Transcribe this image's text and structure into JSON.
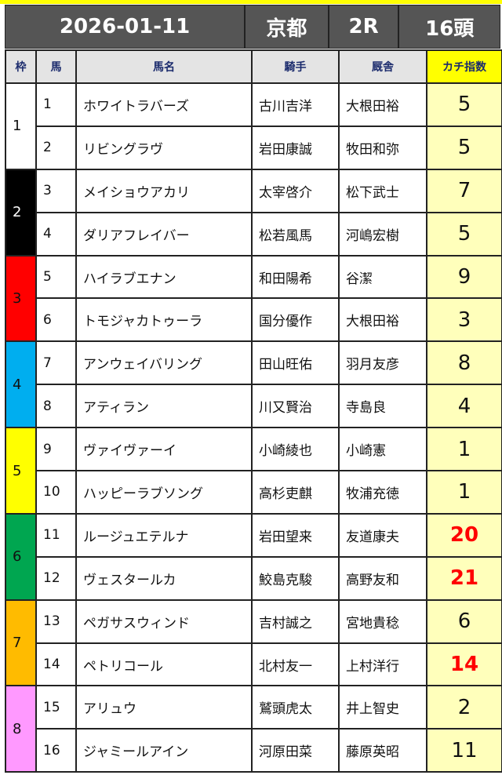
{
  "header": {
    "date": "2026-01-11",
    "venue": "京都",
    "race": "2R",
    "runners": "16頭"
  },
  "columns": {
    "waku": "枠",
    "uma": "馬",
    "name": "馬名",
    "jockey": "騎手",
    "trainer": "厩舎",
    "index": "カチ指数"
  },
  "colors": {
    "waku": [
      "#ffffff",
      "#000000",
      "#ff0000",
      "#00aeef",
      "#ffff00",
      "#00a650",
      "#ffbb00",
      "#ff99ff"
    ],
    "waku_text": [
      "#111111",
      "#ffffff",
      "#111111",
      "#111111",
      "#111111",
      "#111111",
      "#111111",
      "#111111"
    ],
    "highlight": "#ff0000",
    "index_bg": "#ffffbb",
    "header_bg": "#555555"
  },
  "rows": [
    {
      "waku": "1",
      "num": "1",
      "name": "ホワイトラバーズ",
      "jockey": "古川吉洋",
      "trainer": "大根田裕",
      "index": "5",
      "highlight": false
    },
    {
      "waku": "1",
      "num": "2",
      "name": "リビングラヴ",
      "jockey": "岩田康誠",
      "trainer": "牧田和弥",
      "index": "5",
      "highlight": false
    },
    {
      "waku": "2",
      "num": "3",
      "name": "メイショウアカリ",
      "jockey": "太宰啓介",
      "trainer": "松下武士",
      "index": "7",
      "highlight": false
    },
    {
      "waku": "2",
      "num": "4",
      "name": "ダリアフレイバー",
      "jockey": "松若風馬",
      "trainer": "河嶋宏樹",
      "index": "5",
      "highlight": false
    },
    {
      "waku": "3",
      "num": "5",
      "name": "ハイラブエナン",
      "jockey": "和田陽希",
      "trainer": "谷潔",
      "index": "9",
      "highlight": false
    },
    {
      "waku": "3",
      "num": "6",
      "name": "トモジャカトゥーラ",
      "jockey": "国分優作",
      "trainer": "大根田裕",
      "index": "3",
      "highlight": false
    },
    {
      "waku": "4",
      "num": "7",
      "name": "アンウェイバリング",
      "jockey": "田山旺佑",
      "trainer": "羽月友彦",
      "index": "8",
      "highlight": false
    },
    {
      "waku": "4",
      "num": "8",
      "name": "アティラン",
      "jockey": "川又賢治",
      "trainer": "寺島良",
      "index": "4",
      "highlight": false
    },
    {
      "waku": "5",
      "num": "9",
      "name": "ヴァイヴァーイ",
      "jockey": "小崎綾也",
      "trainer": "小崎憲",
      "index": "1",
      "highlight": false
    },
    {
      "waku": "5",
      "num": "10",
      "name": "ハッピーラブソング",
      "jockey": "高杉吏麒",
      "trainer": "牧浦充徳",
      "index": "1",
      "highlight": false
    },
    {
      "waku": "6",
      "num": "11",
      "name": "ルージュエテルナ",
      "jockey": "岩田望来",
      "trainer": "友道康夫",
      "index": "20",
      "highlight": true
    },
    {
      "waku": "6",
      "num": "12",
      "name": "ヴェスタールカ",
      "jockey": "鮫島克駿",
      "trainer": "高野友和",
      "index": "21",
      "highlight": true
    },
    {
      "waku": "7",
      "num": "13",
      "name": "ペガサスウィンド",
      "jockey": "吉村誠之",
      "trainer": "宮地貴稔",
      "index": "6",
      "highlight": false
    },
    {
      "waku": "7",
      "num": "14",
      "name": "ペトリコール",
      "jockey": "北村友一",
      "trainer": "上村洋行",
      "index": "14",
      "highlight": true
    },
    {
      "waku": "8",
      "num": "15",
      "name": "アリュウ",
      "jockey": "鷲頭虎太",
      "trainer": "井上智史",
      "index": "2",
      "highlight": false
    },
    {
      "waku": "8",
      "num": "16",
      "name": "ジャミールアイン",
      "jockey": "河原田菜",
      "trainer": "藤原英昭",
      "index": "11",
      "highlight": false
    }
  ]
}
